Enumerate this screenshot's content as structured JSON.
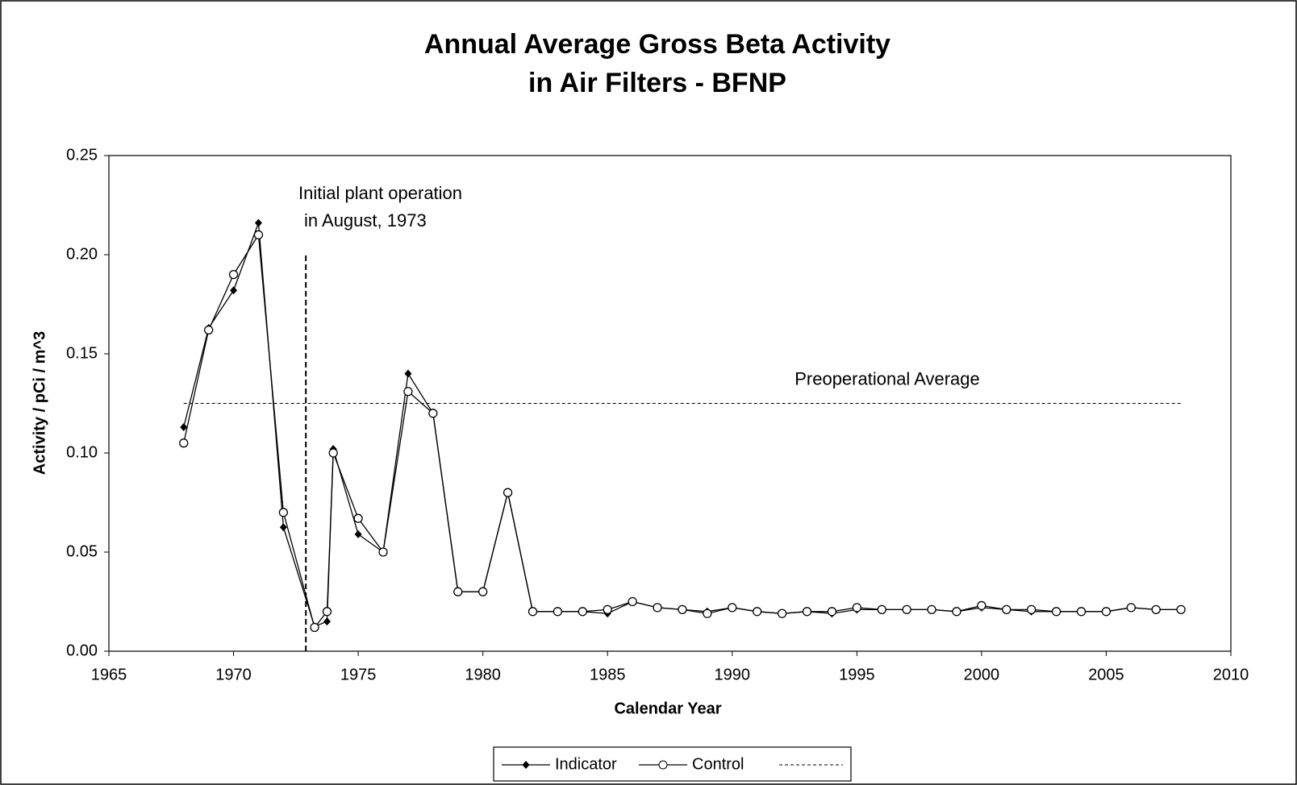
{
  "chart_data": {
    "type": "line",
    "title": [
      "Annual Average Gross Beta Activity",
      "in Air Filters - BFNP"
    ],
    "xlabel": "Calendar Year",
    "ylabel": "Activity  /  pCi / m^3",
    "xlim": [
      1965,
      2010
    ],
    "xticks": [
      1965,
      1970,
      1975,
      1980,
      1985,
      1990,
      1995,
      2000,
      2005,
      2010
    ],
    "ylim": [
      0,
      0.25
    ],
    "yticks": [
      {
        "value": 0,
        "label": "0.00"
      },
      {
        "value": 0.05,
        "label": "0.05"
      },
      {
        "value": 0.1,
        "label": "0.10"
      },
      {
        "value": 0.15,
        "label": "0.15"
      },
      {
        "value": 0.2,
        "label": "0.20"
      },
      {
        "value": 0.25,
        "label": "0.25"
      }
    ],
    "legend": "bottom",
    "series": [
      {
        "name": "Indicator",
        "color": "#000000",
        "marker": "diamond",
        "x": [
          1968,
          1969,
          1970,
          1971,
          1972,
          1973.25,
          1973.75,
          1974,
          1975,
          1976,
          1977,
          1978,
          1979,
          1980,
          1981,
          1982,
          1983,
          1984,
          1985,
          1986,
          1987,
          1988,
          1989,
          1990,
          1991,
          1992,
          1993,
          1994,
          1995,
          1996,
          1997,
          1998,
          1999,
          2000,
          2001,
          2002,
          2003,
          2004,
          2005,
          2006,
          2007,
          2008
        ],
        "values": [
          0.113,
          0.163,
          0.182,
          0.216,
          0.0625,
          0.0125,
          0.015,
          0.102,
          0.059,
          0.05,
          0.14,
          0.12,
          0.03,
          0.03,
          0.08,
          0.02,
          0.02,
          0.02,
          0.019,
          0.025,
          0.022,
          0.021,
          0.02,
          0.022,
          0.02,
          0.019,
          0.02,
          0.019,
          0.021,
          0.021,
          0.021,
          0.021,
          0.02,
          0.022,
          0.021,
          0.02,
          0.02,
          0.02,
          0.02,
          0.022,
          0.021,
          0.021
        ]
      },
      {
        "name": "Control",
        "color": "#000000",
        "marker": "circle",
        "x": [
          1968,
          1969,
          1970,
          1971,
          1972,
          1973.25,
          1973.75,
          1974,
          1975,
          1976,
          1977,
          1978,
          1979,
          1980,
          1981,
          1982,
          1983,
          1984,
          1985,
          1986,
          1987,
          1988,
          1989,
          1990,
          1991,
          1992,
          1993,
          1994,
          1995,
          1996,
          1997,
          1998,
          1999,
          2000,
          2001,
          2002,
          2003,
          2004,
          2005,
          2006,
          2007,
          2008
        ],
        "values": [
          0.105,
          0.162,
          0.19,
          0.21,
          0.07,
          0.012,
          0.02,
          0.1,
          0.067,
          0.05,
          0.131,
          0.12,
          0.03,
          0.03,
          0.08,
          0.02,
          0.02,
          0.02,
          0.021,
          0.025,
          0.022,
          0.021,
          0.019,
          0.022,
          0.02,
          0.019,
          0.02,
          0.02,
          0.022,
          0.021,
          0.021,
          0.021,
          0.02,
          0.023,
          0.021,
          0.021,
          0.02,
          0.02,
          0.02,
          0.022,
          0.021,
          0.021
        ]
      }
    ],
    "reference_line": {
      "label": "Preoperational Average",
      "value": 0.125,
      "x": [
        1968,
        2008
      ]
    },
    "event_line": {
      "label": [
        "Initial plant operation",
        "in August, 1973"
      ],
      "x": 1972.9,
      "y": [
        0,
        0.2
      ]
    }
  }
}
